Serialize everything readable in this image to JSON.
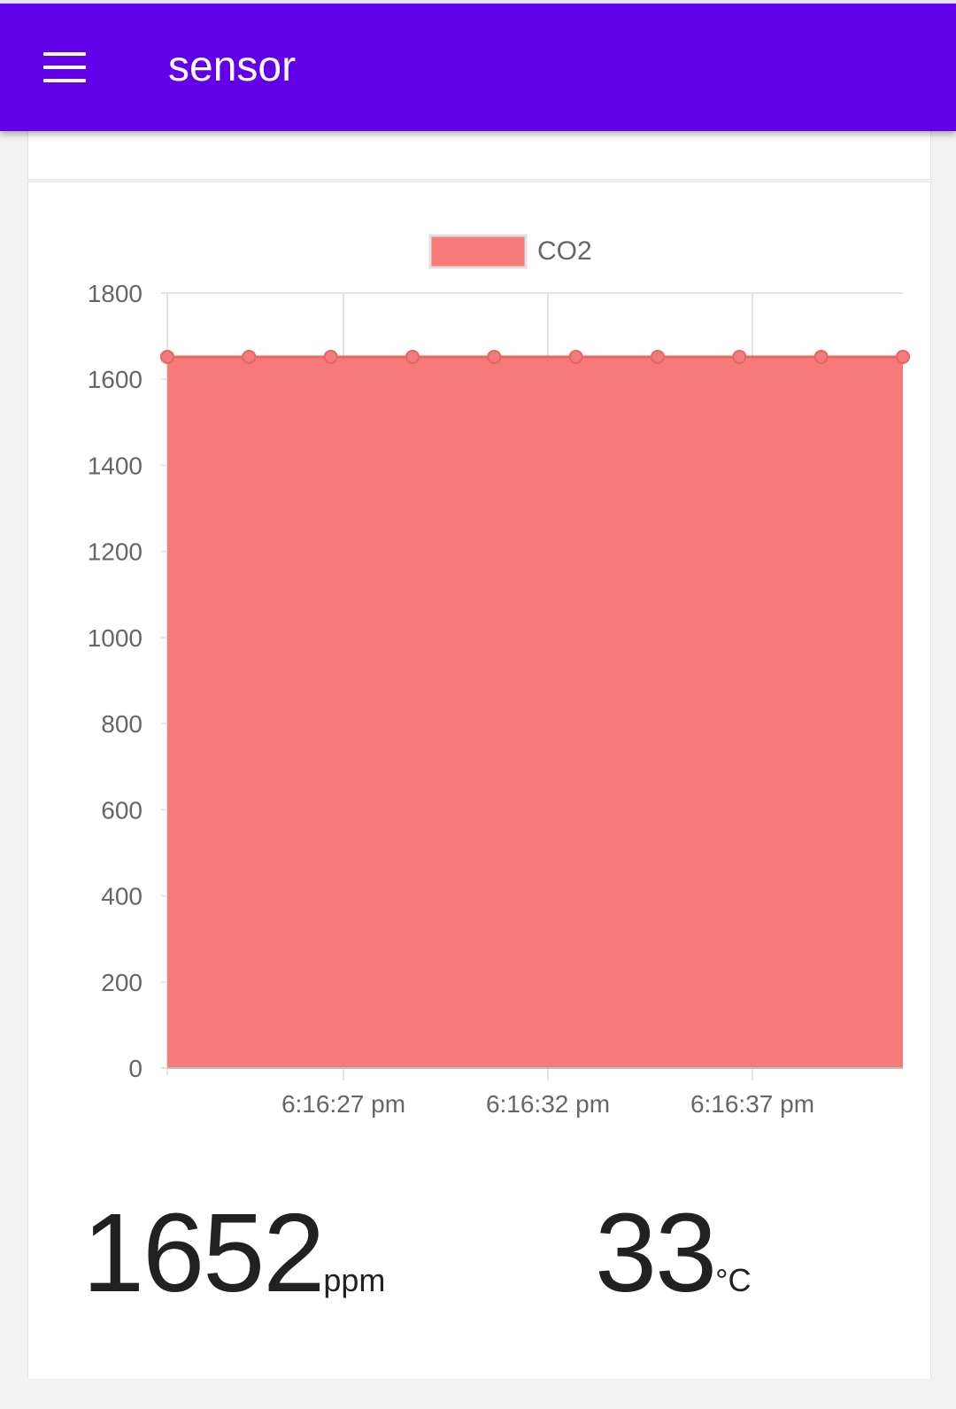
{
  "app_bar": {
    "title": "sensor",
    "menu_icon": "hamburger-menu-icon",
    "color": "#6200ea"
  },
  "chart_data": {
    "type": "area",
    "legend": [
      "CO2"
    ],
    "series": [
      {
        "name": "CO2",
        "color": "#f67a7a",
        "values": [
          1652,
          1652,
          1652,
          1652,
          1652,
          1652,
          1652,
          1652,
          1652,
          1652
        ]
      }
    ],
    "x_tick_labels": [
      "6:16:27 pm",
      "6:16:32 pm",
      "6:16:37 pm"
    ],
    "y_tick_labels": [
      "0",
      "200",
      "400",
      "600",
      "800",
      "1000",
      "1200",
      "1400",
      "1600",
      "1800"
    ],
    "ylim": [
      0,
      1800
    ],
    "grid": true,
    "legend_position": "top"
  },
  "readings": {
    "co2_value": "1652",
    "co2_unit": "ppm",
    "temp_value": "33",
    "temp_unit": "°C"
  }
}
